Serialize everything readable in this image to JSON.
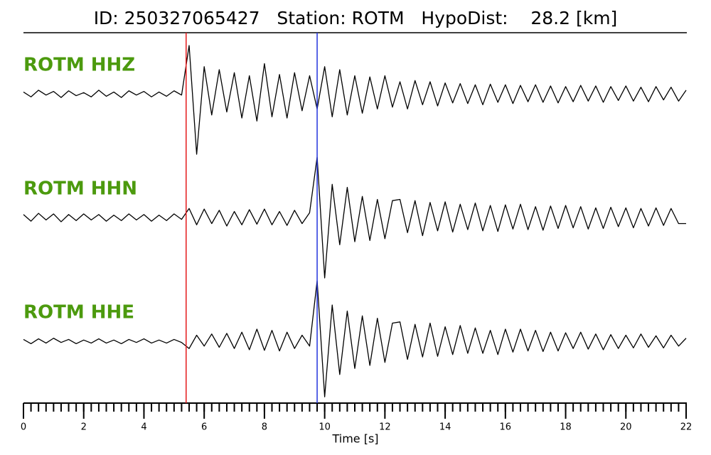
{
  "chart_data": {
    "type": "seismogram",
    "title": "ID: 250327065427   Station: ROTM   HypoDist:    28.2 [km]",
    "x_label": "Time [s]",
    "xlim": [
      0,
      22
    ],
    "xticks": [
      0,
      2,
      4,
      6,
      8,
      10,
      12,
      14,
      16,
      18,
      20,
      22
    ],
    "xminorticks": [
      0,
      0.25,
      0.5,
      0.75,
      1,
      1.25,
      1.5,
      1.75,
      2,
      2.25,
      2.5,
      2.75,
      3,
      3.25,
      3.5,
      3.75,
      4,
      4.25,
      4.5,
      4.75,
      5,
      5.25,
      5.5,
      5.75,
      6,
      6.25,
      6.5,
      6.75,
      7,
      7.25,
      7.5,
      7.75,
      8,
      8.25,
      8.5,
      8.75,
      9,
      9.25,
      9.5,
      9.75,
      10,
      10.25,
      10.5,
      10.75,
      11,
      11.25,
      11.5,
      11.75,
      12,
      12.25,
      12.5,
      12.75,
      13,
      13.25,
      13.5,
      13.75,
      14,
      14.25,
      14.5,
      14.75,
      15,
      15.25,
      15.5,
      15.75,
      16,
      16.25,
      16.5,
      16.75,
      17,
      17.25,
      17.5,
      17.75,
      18,
      18.25,
      18.5,
      18.75,
      19,
      19.25,
      19.5,
      19.75,
      20,
      20.25,
      20.5,
      20.75,
      21,
      21.25,
      21.5,
      21.75,
      22
    ],
    "ylim": [
      -1,
      1
    ],
    "label_color": "#4c9a0e",
    "picks": [
      {
        "time": 5.4,
        "color": "#e41a1c"
      },
      {
        "time": 9.75,
        "color": "#2233dd"
      }
    ],
    "x": [
      0,
      0.25,
      0.5,
      0.75,
      1,
      1.25,
      1.5,
      1.75,
      2,
      2.25,
      2.5,
      2.75,
      3,
      3.25,
      3.5,
      3.75,
      4,
      4.25,
      4.5,
      4.75,
      5,
      5.25,
      5.5,
      5.75,
      6,
      6.25,
      6.5,
      6.75,
      7,
      7.25,
      7.5,
      7.75,
      8,
      8.25,
      8.5,
      8.75,
      9,
      9.25,
      9.5,
      9.75,
      10,
      10.25,
      10.5,
      10.75,
      11,
      11.25,
      11.5,
      11.75,
      12,
      12.25,
      12.5,
      12.75,
      13,
      13.25,
      13.5,
      13.75,
      14,
      14.25,
      14.5,
      14.75,
      15,
      15.25,
      15.5,
      15.75,
      16,
      16.25,
      16.5,
      16.75,
      17,
      17.25,
      17.5,
      17.75,
      18,
      18.25,
      18.5,
      18.75,
      19,
      19.25,
      19.5,
      19.75,
      20,
      20.25,
      20.5,
      20.75,
      21,
      21.25,
      21.5,
      21.75,
      22
    ],
    "series": [
      {
        "name": "ROTM HHZ",
        "color": "#000000",
        "values": [
          0.03,
          -0.05,
          0.06,
          -0.02,
          0.04,
          -0.06,
          0.05,
          -0.03,
          0.02,
          -0.05,
          0.06,
          -0.04,
          0.03,
          -0.06,
          0.05,
          -0.02,
          0.04,
          -0.05,
          0.03,
          -0.04,
          0.05,
          -0.02,
          0.8,
          -1.0,
          0.45,
          -0.35,
          0.4,
          -0.3,
          0.35,
          -0.4,
          0.3,
          -0.45,
          0.5,
          -0.38,
          0.32,
          -0.4,
          0.35,
          -0.28,
          0.3,
          -0.25,
          0.45,
          -0.38,
          0.4,
          -0.35,
          0.3,
          -0.32,
          0.28,
          -0.25,
          0.3,
          -0.22,
          0.2,
          -0.25,
          0.22,
          -0.18,
          0.2,
          -0.2,
          0.18,
          -0.15,
          0.17,
          -0.16,
          0.15,
          -0.18,
          0.16,
          -0.14,
          0.15,
          -0.16,
          0.14,
          -0.13,
          0.15,
          -0.14,
          0.13,
          -0.15,
          0.12,
          -0.13,
          0.14,
          -0.12,
          0.13,
          -0.14,
          0.12,
          -0.11,
          0.13,
          -0.12,
          0.11,
          -0.13,
          0.12,
          -0.1,
          0.11,
          -0.12,
          0.06
        ]
      },
      {
        "name": "ROTM HHN",
        "color": "#000000",
        "values": [
          0.05,
          -0.06,
          0.07,
          -0.04,
          0.06,
          -0.07,
          0.05,
          -0.05,
          0.06,
          -0.04,
          0.05,
          -0.06,
          0.04,
          -0.05,
          0.06,
          -0.04,
          0.05,
          -0.06,
          0.04,
          -0.05,
          0.06,
          -0.03,
          0.15,
          -0.12,
          0.14,
          -0.1,
          0.12,
          -0.14,
          0.1,
          -0.12,
          0.13,
          -0.11,
          0.14,
          -0.12,
          0.1,
          -0.13,
          0.12,
          -0.1,
          0.08,
          1.0,
          -1.0,
          0.55,
          -0.45,
          0.5,
          -0.4,
          0.35,
          -0.38,
          0.3,
          -0.35,
          0.28,
          0.3,
          -0.25,
          0.28,
          -0.3,
          0.25,
          -0.22,
          0.26,
          -0.24,
          0.22,
          -0.2,
          0.24,
          -0.22,
          0.2,
          -0.23,
          0.21,
          -0.19,
          0.22,
          -0.2,
          0.18,
          -0.21,
          0.19,
          -0.18,
          0.2,
          -0.17,
          0.18,
          -0.19,
          0.16,
          -0.18,
          0.17,
          -0.15,
          0.16,
          -0.17,
          0.15,
          -0.14,
          0.16,
          -0.13,
          0.15,
          -0.1,
          -0.1
        ]
      },
      {
        "name": "ROTM HHE",
        "color": "#000000",
        "values": [
          0.03,
          -0.04,
          0.04,
          -0.03,
          0.05,
          -0.02,
          0.03,
          -0.04,
          0.02,
          -0.03,
          0.04,
          -0.03,
          0.02,
          -0.04,
          0.03,
          -0.02,
          0.04,
          -0.03,
          0.02,
          -0.03,
          0.03,
          -0.02,
          -0.12,
          0.1,
          -0.08,
          0.12,
          -0.1,
          0.13,
          -0.12,
          0.15,
          -0.14,
          0.2,
          -0.15,
          0.18,
          -0.16,
          0.15,
          -0.12,
          0.1,
          -0.08,
          1.0,
          -0.92,
          0.6,
          -0.55,
          0.5,
          -0.45,
          0.42,
          -0.4,
          0.38,
          -0.35,
          0.3,
          0.32,
          -0.3,
          0.28,
          -0.26,
          0.3,
          -0.25,
          0.24,
          -0.22,
          0.26,
          -0.2,
          0.22,
          -0.2,
          0.18,
          -0.22,
          0.2,
          -0.18,
          0.2,
          -0.16,
          0.18,
          -0.17,
          0.15,
          -0.16,
          0.14,
          -0.12,
          0.15,
          -0.13,
          0.12,
          -0.14,
          0.11,
          -0.12,
          0.1,
          -0.11,
          0.12,
          -0.1,
          0.09,
          -0.11,
          0.1,
          -0.08,
          0.05
        ]
      }
    ]
  }
}
